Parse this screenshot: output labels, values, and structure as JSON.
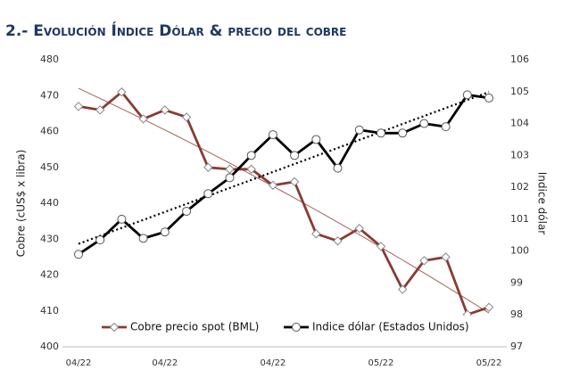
{
  "chart_data": {
    "type": "line",
    "title": "2.- Evolución Índice Dólar & precio del cobre",
    "y_label": "Cobre (cUS$ x libra)",
    "y2_label": "Indice dólar",
    "categories": [
      "04/22",
      null,
      null,
      null,
      "04/22",
      null,
      null,
      null,
      null,
      "04/22",
      null,
      null,
      null,
      null,
      "05/22",
      null,
      null,
      null,
      null,
      "05/22"
    ],
    "ylim": [
      400,
      480
    ],
    "yticks": [
      400,
      410,
      420,
      430,
      440,
      450,
      460,
      470,
      480
    ],
    "y2lim": [
      97,
      106
    ],
    "y2ticks": [
      97,
      98,
      99,
      100,
      101,
      102,
      103,
      104,
      105,
      106
    ],
    "legend": "bottom",
    "series": [
      {
        "name": "Cobre precio spot (BML)",
        "color": "#8b3a32",
        "marker": "diamond",
        "trendline": "polynomial",
        "values": [
          467,
          466,
          471,
          463.5,
          466,
          464,
          450,
          449.5,
          449.5,
          445,
          446,
          431.5,
          429.5,
          433,
          428,
          416,
          424,
          425,
          409,
          411
        ]
      },
      {
        "name": "Indice dólar (Estados Unidos)",
        "color": "#000000",
        "marker": "circle",
        "axis": "y2",
        "trendline": "linear",
        "values": [
          99.9,
          100.35,
          101.0,
          100.4,
          100.6,
          101.25,
          101.8,
          102.3,
          103.0,
          103.65,
          103.0,
          103.5,
          102.6,
          103.8,
          103.7,
          103.7,
          104.0,
          103.9,
          104.9,
          104.8
        ]
      }
    ]
  }
}
